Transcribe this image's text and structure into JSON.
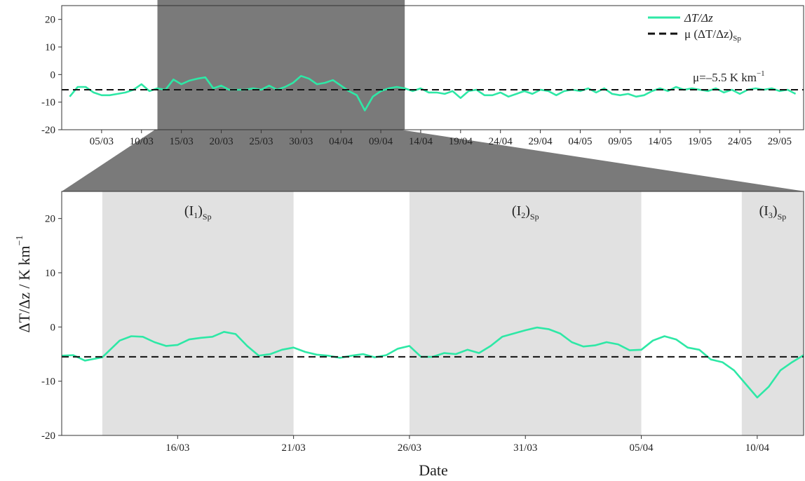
{
  "chart_data": [
    {
      "type": "line",
      "xaxis": "date",
      "x_tick_labels": [
        "05/03",
        "10/03",
        "15/03",
        "20/03",
        "25/03",
        "30/03",
        "04/04",
        "09/04",
        "14/04",
        "19/04",
        "24/04",
        "29/04",
        "04/05",
        "09/05",
        "14/05",
        "19/05",
        "24/05",
        "29/05"
      ],
      "x_tick_dates": [
        "2020-03-05",
        "2020-03-10",
        "2020-03-15",
        "2020-03-20",
        "2020-03-25",
        "2020-03-30",
        "2020-04-04",
        "2020-04-09",
        "2020-04-14",
        "2020-04-19",
        "2020-04-24",
        "2020-04-29",
        "2020-05-04",
        "2020-05-09",
        "2020-05-14",
        "2020-05-19",
        "2020-05-24",
        "2020-05-29"
      ],
      "xlim": [
        "2020-02-29",
        "2020-06-01"
      ],
      "y_ticks": [
        -20,
        -10,
        0,
        10,
        20
      ],
      "ylim": [
        -20,
        25
      ],
      "highlight": {
        "from": "2020-03-12",
        "to": "2020-04-12",
        "color": "#7a7a7a"
      },
      "legend": {
        "position": "top-right",
        "entries": [
          {
            "label_main": "ΔT/Δz",
            "label_sub": "",
            "style": "solid",
            "color": "#2ee8a6"
          },
          {
            "label_main": "μ (ΔT/Δz)",
            "label_sub": "Sp",
            "style": "dashed",
            "color": "#111111"
          }
        ]
      },
      "annotation": {
        "text": "μ=–5.5 K km",
        "sup": "−1"
      },
      "mean": -5.5,
      "series": [
        {
          "color": "#2ee8a6",
          "points": [
            [
              "2020-03-01",
              -8
            ],
            [
              "2020-03-02",
              -4.5
            ],
            [
              "2020-03-03",
              -4.5
            ],
            [
              "2020-03-04",
              -6.5
            ],
            [
              "2020-03-05",
              -7.5
            ],
            [
              "2020-03-06",
              -7.5
            ],
            [
              "2020-03-07",
              -7
            ],
            [
              "2020-03-08",
              -6.5
            ],
            [
              "2020-03-09",
              -5.5
            ],
            [
              "2020-03-10",
              -3.5
            ],
            [
              "2020-03-11",
              -6
            ],
            [
              "2020-03-12",
              -5
            ],
            [
              "2020-03-13",
              -5.5
            ],
            [
              "2020-03-14",
              -1.8
            ],
            [
              "2020-03-15",
              -3.5
            ],
            [
              "2020-03-16",
              -2.2
            ],
            [
              "2020-03-17",
              -1.5
            ],
            [
              "2020-03-18",
              -1
            ],
            [
              "2020-03-19",
              -5
            ],
            [
              "2020-03-20",
              -4
            ],
            [
              "2020-03-21",
              -5.5
            ],
            [
              "2020-03-22",
              -5.5
            ],
            [
              "2020-03-23",
              -5.5
            ],
            [
              "2020-03-24",
              -5
            ],
            [
              "2020-03-25",
              -5.5
            ],
            [
              "2020-03-26",
              -4
            ],
            [
              "2020-03-27",
              -5.5
            ],
            [
              "2020-03-28",
              -4.5
            ],
            [
              "2020-03-29",
              -3
            ],
            [
              "2020-03-30",
              -0.5
            ],
            [
              "2020-03-31",
              -1.5
            ],
            [
              "2020-04-01",
              -3.5
            ],
            [
              "2020-04-02",
              -3
            ],
            [
              "2020-04-03",
              -2
            ],
            [
              "2020-04-04",
              -4
            ],
            [
              "2020-04-05",
              -6
            ],
            [
              "2020-04-06",
              -7.5
            ],
            [
              "2020-04-07",
              -13
            ],
            [
              "2020-04-08",
              -8
            ],
            [
              "2020-04-09",
              -6
            ],
            [
              "2020-04-10",
              -5
            ],
            [
              "2020-04-11",
              -4.5
            ],
            [
              "2020-04-12",
              -5
            ],
            [
              "2020-04-13",
              -6
            ],
            [
              "2020-04-14",
              -5
            ],
            [
              "2020-04-15",
              -6.5
            ],
            [
              "2020-04-16",
              -6.5
            ],
            [
              "2020-04-17",
              -7
            ],
            [
              "2020-04-18",
              -6
            ],
            [
              "2020-04-19",
              -8.5
            ],
            [
              "2020-04-20",
              -6
            ],
            [
              "2020-04-21",
              -5.5
            ],
            [
              "2020-04-22",
              -7.5
            ],
            [
              "2020-04-23",
              -7.5
            ],
            [
              "2020-04-24",
              -6.5
            ],
            [
              "2020-04-25",
              -8
            ],
            [
              "2020-04-26",
              -7
            ],
            [
              "2020-04-27",
              -6
            ],
            [
              "2020-04-28",
              -7
            ],
            [
              "2020-04-29",
              -5.5
            ],
            [
              "2020-04-30",
              -6
            ],
            [
              "2020-05-01",
              -7.5
            ],
            [
              "2020-05-02",
              -6
            ],
            [
              "2020-05-03",
              -5.5
            ],
            [
              "2020-05-04",
              -6
            ],
            [
              "2020-05-05",
              -5
            ],
            [
              "2020-05-06",
              -6.5
            ],
            [
              "2020-05-07",
              -5
            ],
            [
              "2020-05-08",
              -7
            ],
            [
              "2020-05-09",
              -7.5
            ],
            [
              "2020-05-10",
              -7
            ],
            [
              "2020-05-11",
              -8
            ],
            [
              "2020-05-12",
              -7.5
            ],
            [
              "2020-05-13",
              -6
            ],
            [
              "2020-05-14",
              -5
            ],
            [
              "2020-05-15",
              -6
            ],
            [
              "2020-05-16",
              -4.5
            ],
            [
              "2020-05-17",
              -5.5
            ],
            [
              "2020-05-18",
              -5
            ],
            [
              "2020-05-19",
              -5.5
            ],
            [
              "2020-05-20",
              -6
            ],
            [
              "2020-05-21",
              -5
            ],
            [
              "2020-05-22",
              -6.5
            ],
            [
              "2020-05-23",
              -5.5
            ],
            [
              "2020-05-24",
              -7
            ],
            [
              "2020-05-25",
              -5.5
            ],
            [
              "2020-05-26",
              -5
            ],
            [
              "2020-05-27",
              -5.5
            ],
            [
              "2020-05-28",
              -5
            ],
            [
              "2020-05-29",
              -6
            ],
            [
              "2020-05-30",
              -5.5
            ],
            [
              "2020-05-31",
              -7
            ]
          ]
        },
        {
          "style": "dashed",
          "color": "#111111",
          "points": [
            [
              "2020-02-29",
              -5.5
            ],
            [
              "2020-06-01",
              -5.5
            ]
          ]
        }
      ]
    },
    {
      "type": "line",
      "xaxis": "date",
      "xlabel": "Date",
      "ylabel": "ΔT/Δz / K km",
      "ylabel_sup": "−1",
      "x_tick_labels": [
        "16/03",
        "21/03",
        "26/03",
        "31/03",
        "05/04",
        "10/04"
      ],
      "x_tick_dates": [
        "2020-03-16",
        "2020-03-21",
        "2020-03-26",
        "2020-03-31",
        "2020-04-05",
        "2020-04-10"
      ],
      "xlim": [
        "2020-03-11",
        "2020-04-12"
      ],
      "y_ticks": [
        -20,
        -10,
        0,
        10,
        20
      ],
      "ylim": [
        -20,
        25
      ],
      "mean": -5.5,
      "regions": [
        {
          "label_main": "(I",
          "label_index": "1",
          "label_close": ")",
          "label_sub": "Sp",
          "from": "2020-03-12T18:00",
          "to": "2020-03-21"
        },
        {
          "label_main": "(I",
          "label_index": "2",
          "label_close": ")",
          "label_sub": "Sp",
          "from": "2020-03-26",
          "to": "2020-04-05"
        },
        {
          "label_main": "(I",
          "label_index": "3",
          "label_close": ")",
          "label_sub": "Sp",
          "from": "2020-04-09T08:00",
          "to": "2020-04-12"
        }
      ],
      "series": [
        {
          "color": "#2ee8a6",
          "points": [
            [
              "2020-03-11T00:00",
              -5.3
            ],
            [
              "2020-03-11T12:00",
              -5.2
            ],
            [
              "2020-03-12T00:00",
              -6.2
            ],
            [
              "2020-03-12T18:00",
              -5.6
            ],
            [
              "2020-03-13T12:00",
              -2.5
            ],
            [
              "2020-03-14T00:00",
              -1.7
            ],
            [
              "2020-03-14T12:00",
              -1.8
            ],
            [
              "2020-03-15T00:00",
              -2.8
            ],
            [
              "2020-03-15T12:00",
              -3.5
            ],
            [
              "2020-03-16T00:00",
              -3.3
            ],
            [
              "2020-03-16T12:00",
              -2.3
            ],
            [
              "2020-03-17T00:00",
              -2
            ],
            [
              "2020-03-17T12:00",
              -1.8
            ],
            [
              "2020-03-18T00:00",
              -0.9
            ],
            [
              "2020-03-18T12:00",
              -1.3
            ],
            [
              "2020-03-19T00:00",
              -3.5
            ],
            [
              "2020-03-19T12:00",
              -5.3
            ],
            [
              "2020-03-20T00:00",
              -5
            ],
            [
              "2020-03-20T12:00",
              -4.2
            ],
            [
              "2020-03-21T00:00",
              -3.8
            ],
            [
              "2020-03-21T12:00",
              -4.6
            ],
            [
              "2020-03-22T00:00",
              -5.1
            ],
            [
              "2020-03-22T12:00",
              -5.3
            ],
            [
              "2020-03-23T00:00",
              -5.7
            ],
            [
              "2020-03-23T12:00",
              -5.3
            ],
            [
              "2020-03-24T00:00",
              -5
            ],
            [
              "2020-03-24T12:00",
              -5.6
            ],
            [
              "2020-03-25T00:00",
              -5.2
            ],
            [
              "2020-03-25T12:00",
              -4
            ],
            [
              "2020-03-26T00:00",
              -3.5
            ],
            [
              "2020-03-26T12:00",
              -5.5
            ],
            [
              "2020-03-27T00:00",
              -5.5
            ],
            [
              "2020-03-27T12:00",
              -4.8
            ],
            [
              "2020-03-28T00:00",
              -5
            ],
            [
              "2020-03-28T12:00",
              -4.2
            ],
            [
              "2020-03-29T00:00",
              -4.8
            ],
            [
              "2020-03-29T12:00",
              -3.5
            ],
            [
              "2020-03-30T00:00",
              -1.8
            ],
            [
              "2020-03-30T12:00",
              -1.2
            ],
            [
              "2020-03-31T00:00",
              -0.6
            ],
            [
              "2020-03-31T12:00",
              -0.1
            ],
            [
              "2020-04-01T00:00",
              -0.4
            ],
            [
              "2020-04-01T12:00",
              -1.2
            ],
            [
              "2020-04-02T00:00",
              -2.8
            ],
            [
              "2020-04-02T12:00",
              -3.6
            ],
            [
              "2020-04-03T00:00",
              -3.4
            ],
            [
              "2020-04-03T12:00",
              -2.8
            ],
            [
              "2020-04-04T00:00",
              -3.2
            ],
            [
              "2020-04-04T12:00",
              -4.3
            ],
            [
              "2020-04-05T00:00",
              -4.2
            ],
            [
              "2020-04-05T12:00",
              -2.5
            ],
            [
              "2020-04-06T00:00",
              -1.7
            ],
            [
              "2020-04-06T12:00",
              -2.3
            ],
            [
              "2020-04-07T00:00",
              -3.8
            ],
            [
              "2020-04-07T12:00",
              -4.2
            ],
            [
              "2020-04-08T00:00",
              -6
            ],
            [
              "2020-04-08T12:00",
              -6.5
            ],
            [
              "2020-04-09T00:00",
              -8
            ],
            [
              "2020-04-09T12:00",
              -10.5
            ],
            [
              "2020-04-10T00:00",
              -13
            ],
            [
              "2020-04-10T12:00",
              -11
            ],
            [
              "2020-04-11T00:00",
              -8
            ],
            [
              "2020-04-11T12:00",
              -6.5
            ],
            [
              "2020-04-12T00:00",
              -5.2
            ]
          ]
        },
        {
          "style": "dashed",
          "color": "#111111",
          "points": [
            [
              "2020-03-11",
              -5.5
            ],
            [
              "2020-04-12",
              -5.5
            ]
          ]
        }
      ]
    }
  ]
}
